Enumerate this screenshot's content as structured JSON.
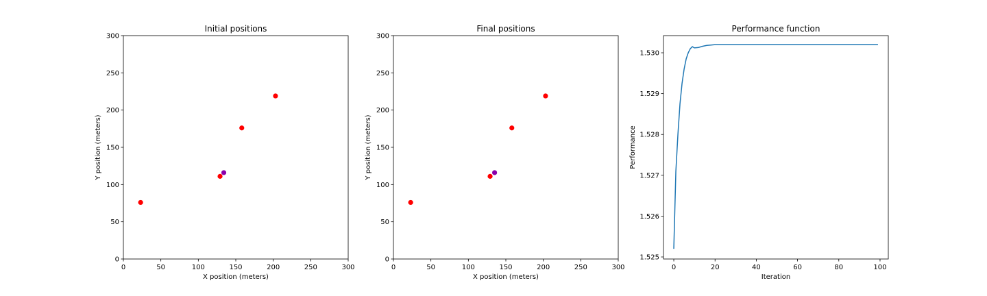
{
  "chart_data": [
    {
      "type": "scatter",
      "title": "Initial positions",
      "xlabel": "X position (meters)",
      "ylabel": "Y position (meters)",
      "xlim": [
        0,
        300
      ],
      "ylim": [
        0,
        300
      ],
      "xticks": [
        0,
        50,
        100,
        150,
        200,
        250,
        300
      ],
      "yticks": [
        0,
        50,
        100,
        150,
        200,
        250,
        300
      ],
      "grid": false,
      "series": [
        {
          "color": "#ff0000",
          "points": [
            [
              23,
              76
            ],
            [
              129,
              111
            ],
            [
              158,
              176
            ],
            [
              203,
              219
            ]
          ]
        },
        {
          "color": "#8b00aa",
          "points": [
            [
              134,
              116
            ]
          ]
        }
      ]
    },
    {
      "type": "scatter",
      "title": "Final positions",
      "xlabel": "X position (meters)",
      "ylabel": "Y position (meters)",
      "xlim": [
        0,
        300
      ],
      "ylim": [
        0,
        300
      ],
      "xticks": [
        0,
        50,
        100,
        150,
        200,
        250,
        300
      ],
      "yticks": [
        0,
        50,
        100,
        150,
        200,
        250,
        300
      ],
      "grid": false,
      "series": [
        {
          "color": "#ff0000",
          "points": [
            [
              23,
              76
            ],
            [
              129,
              111
            ],
            [
              158,
              176
            ],
            [
              203,
              219
            ]
          ]
        },
        {
          "color": "#8b00aa",
          "points": [
            [
              135,
              116
            ]
          ]
        }
      ]
    },
    {
      "type": "line",
      "title": "Performance function",
      "xlabel": "Iteration",
      "ylabel": "Performance",
      "xlim": [
        -5,
        104
      ],
      "ylim": [
        1.52495,
        1.53042
      ],
      "xticks": [
        0,
        20,
        40,
        60,
        80,
        100
      ],
      "yticks": [
        1.525,
        1.526,
        1.527,
        1.528,
        1.529,
        1.53
      ],
      "ytick_labels": [
        "1.525",
        "1.526",
        "1.527",
        "1.528",
        "1.529",
        "1.530"
      ],
      "grid": false,
      "series": [
        {
          "color": "#1f77b4",
          "x": [
            0,
            1,
            2,
            3,
            4,
            5,
            6,
            7,
            8,
            9,
            10,
            12,
            14,
            16,
            18,
            20,
            25,
            30,
            40,
            60,
            80,
            99
          ],
          "y": [
            1.5252,
            1.5271,
            1.528,
            1.52875,
            1.52925,
            1.5296,
            1.52985,
            1.53,
            1.5301,
            1.53015,
            1.53012,
            1.53013,
            1.53016,
            1.53018,
            1.53019,
            1.5302,
            1.5302,
            1.5302,
            1.5302,
            1.5302,
            1.5302,
            1.5302
          ]
        }
      ]
    }
  ]
}
